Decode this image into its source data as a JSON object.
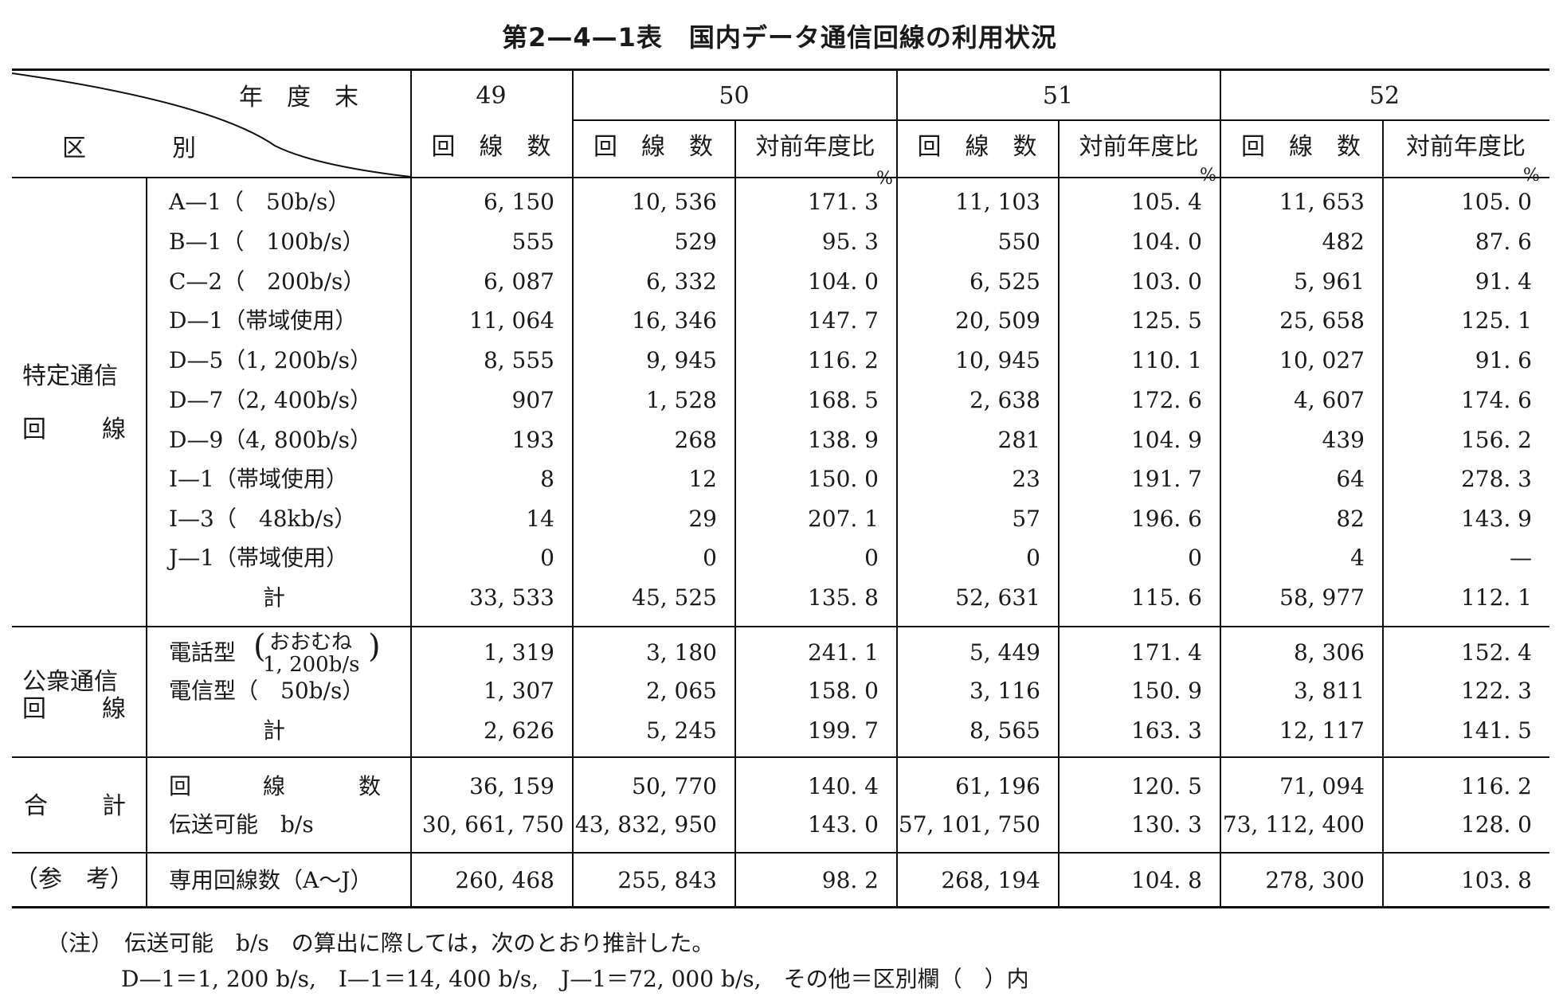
{
  "title": "第2—4—1表　国内データ通信回線の利用状況",
  "header": {
    "year_label": "年　度　末",
    "category_label_1": "区",
    "category_label_2": "別",
    "years": [
      "49",
      "50",
      "51",
      "52"
    ],
    "col_count": "回　線　数",
    "col_ratio": "対前年度比",
    "percent_sign": "%"
  },
  "groups": {
    "special": {
      "label_1": "特定通信",
      "label_2a": "回",
      "label_2b": "線"
    },
    "public": {
      "label_1": "公衆通信",
      "label_2a": "回",
      "label_2b": "線"
    },
    "total": {
      "label_a": "合",
      "label_b": "計"
    },
    "ref": {
      "label": "（参　考）"
    }
  },
  "rows": [
    {
      "label": "A—1（　50b/s）",
      "v": [
        "6, 150",
        "10, 536",
        "171. 3",
        "11, 103",
        "105. 4",
        "11, 653",
        "105. 0"
      ]
    },
    {
      "label": "B—1（　100b/s）",
      "v": [
        "555",
        "529",
        "95. 3",
        "550",
        "104. 0",
        "482",
        "87. 6"
      ]
    },
    {
      "label": "C—2（　200b/s）",
      "v": [
        "6, 087",
        "6, 332",
        "104. 0",
        "6, 525",
        "103. 0",
        "5, 961",
        "91. 4"
      ]
    },
    {
      "label": "D—1（帯域使用）",
      "v": [
        "11, 064",
        "16, 346",
        "147. 7",
        "20, 509",
        "125. 5",
        "25, 658",
        "125. 1"
      ]
    },
    {
      "label": "D—5（1, 200b/s）",
      "v": [
        "8, 555",
        "9, 945",
        "116. 2",
        "10, 945",
        "110. 1",
        "10, 027",
        "91. 6"
      ]
    },
    {
      "label": "D—7（2, 400b/s）",
      "v": [
        "907",
        "1, 528",
        "168. 5",
        "2, 638",
        "172. 6",
        "4, 607",
        "174. 6"
      ]
    },
    {
      "label": "D—9（4, 800b/s）",
      "v": [
        "193",
        "268",
        "138. 9",
        "281",
        "104. 9",
        "439",
        "156. 2"
      ]
    },
    {
      "label": "I—1（帯域使用）",
      "v": [
        "8",
        "12",
        "150. 0",
        "23",
        "191. 7",
        "64",
        "278. 3"
      ]
    },
    {
      "label": "I—3（　48kb/s）",
      "v": [
        "14",
        "29",
        "207. 1",
        "57",
        "196. 6",
        "82",
        "143. 9"
      ]
    },
    {
      "label": "J—1（帯域使用）",
      "v": [
        "0",
        "0",
        "0",
        "0",
        "0",
        "4",
        "—"
      ]
    },
    {
      "label": "計",
      "v": [
        "33, 533",
        "45, 525",
        "135. 8",
        "52, 631",
        "115. 6",
        "58, 977",
        "112. 1"
      ]
    },
    {
      "label_a": "電話型",
      "label_b": "おおむね",
      "label_c": "1, 200b/s",
      "v": [
        "1, 319",
        "3, 180",
        "241. 1",
        "5, 449",
        "171. 4",
        "8, 306",
        "152. 4"
      ]
    },
    {
      "label": "電信型（　50b/s）",
      "v": [
        "1, 307",
        "2, 065",
        "158. 0",
        "3, 116",
        "150. 9",
        "3, 811",
        "122. 3"
      ]
    },
    {
      "label": "計",
      "v": [
        "2, 626",
        "5, 245",
        "199. 7",
        "8, 565",
        "163. 3",
        "12, 117",
        "141. 5"
      ]
    },
    {
      "label_a": "回",
      "label_b": "線",
      "label_c": "数",
      "v": [
        "36, 159",
        "50, 770",
        "140. 4",
        "61, 196",
        "120. 5",
        "71, 094",
        "116. 2"
      ]
    },
    {
      "label": "伝送可能　b/s",
      "v": [
        "30, 661, 750",
        "43, 832, 950",
        "143. 0",
        "57, 101, 750",
        "130. 3",
        "73, 112, 400",
        "128. 0"
      ]
    },
    {
      "label": "専用回線数（A～J）",
      "v": [
        "260, 468",
        "255, 843",
        "98. 2",
        "268, 194",
        "104. 8",
        "278, 300",
        "103. 8"
      ]
    }
  ],
  "notes": {
    "line1": "（注）　伝送可能　b/s　の算出に際しては，次のとおり推計した。",
    "line2": "D—1＝1, 200 b/s,　I—1＝14, 400 b/s,　J—1＝72, 000 b/s,　その他＝区別欄（　）内"
  }
}
